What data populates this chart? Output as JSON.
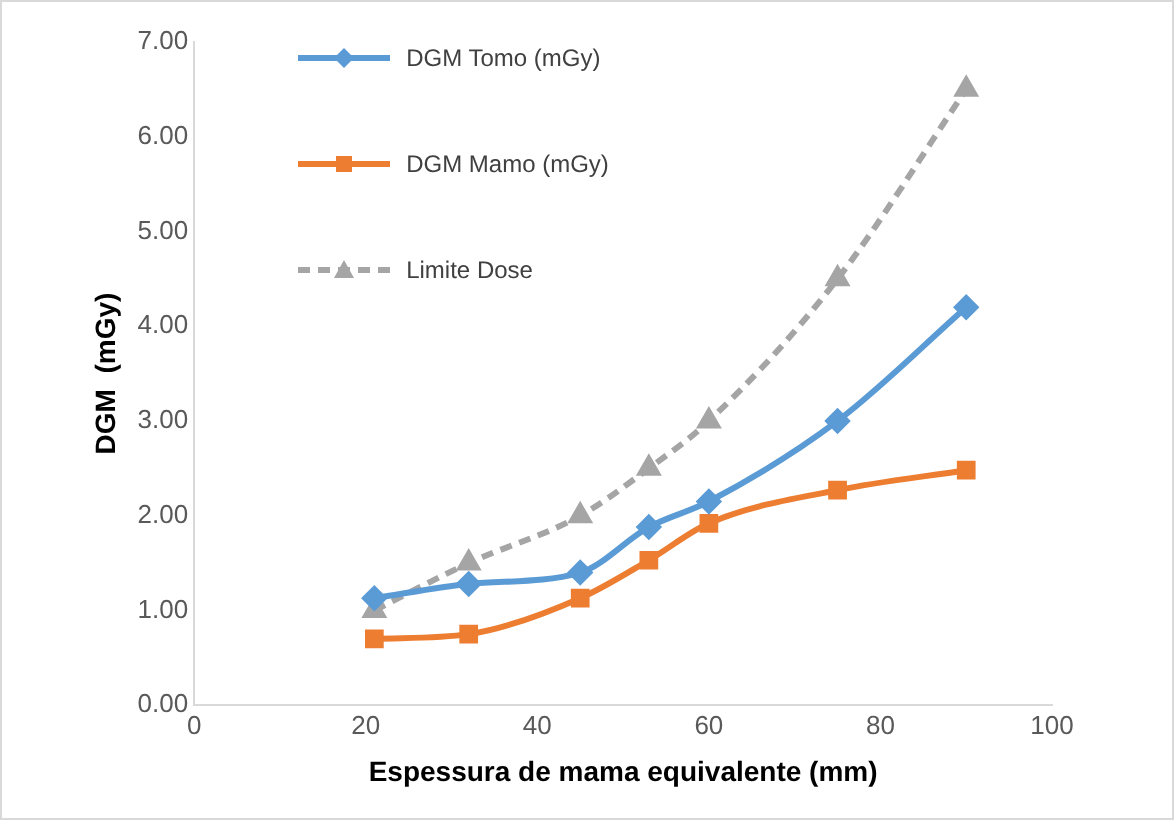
{
  "chart_data": {
    "type": "line",
    "xlabel": "Espessura de mama equivalente (mm)",
    "ylabel": "DGM  (mGy)",
    "x": [
      21,
      32,
      45,
      53,
      60,
      75,
      90
    ],
    "series": [
      {
        "name": "DGM Tomo (mGy)",
        "color": "#5b9bd5",
        "marker": "diamond",
        "line_style": "solid",
        "values": [
          1.13,
          1.28,
          1.4,
          1.88,
          2.15,
          3.0,
          4.2
        ]
      },
      {
        "name": "DGM Mamo (mGy)",
        "color": "#ed7d31",
        "marker": "square",
        "line_style": "solid",
        "values": [
          0.7,
          0.75,
          1.13,
          1.53,
          1.92,
          2.27,
          2.48
        ]
      },
      {
        "name": "Limite Dose",
        "color": "#a5a5a5",
        "marker": "triangle",
        "line_style": "dashed",
        "values": [
          1.0,
          1.5,
          2.0,
          2.5,
          3.0,
          4.5,
          6.5
        ]
      }
    ],
    "xlim": [
      0,
      100
    ],
    "xticks": [
      0,
      20,
      40,
      60,
      80,
      100
    ],
    "ylim": [
      0,
      7
    ],
    "yticks": [
      {
        "value": 0,
        "label": "0.00"
      },
      {
        "value": 1,
        "label": "1.00"
      },
      {
        "value": 2,
        "label": "2.00"
      },
      {
        "value": 3,
        "label": "3.00"
      },
      {
        "value": 4,
        "label": "4.00"
      },
      {
        "value": 5,
        "label": "5.00"
      },
      {
        "value": 6,
        "label": "6.00"
      },
      {
        "value": 7,
        "label": "7.00"
      }
    ],
    "grid": false,
    "legend": "top left"
  }
}
